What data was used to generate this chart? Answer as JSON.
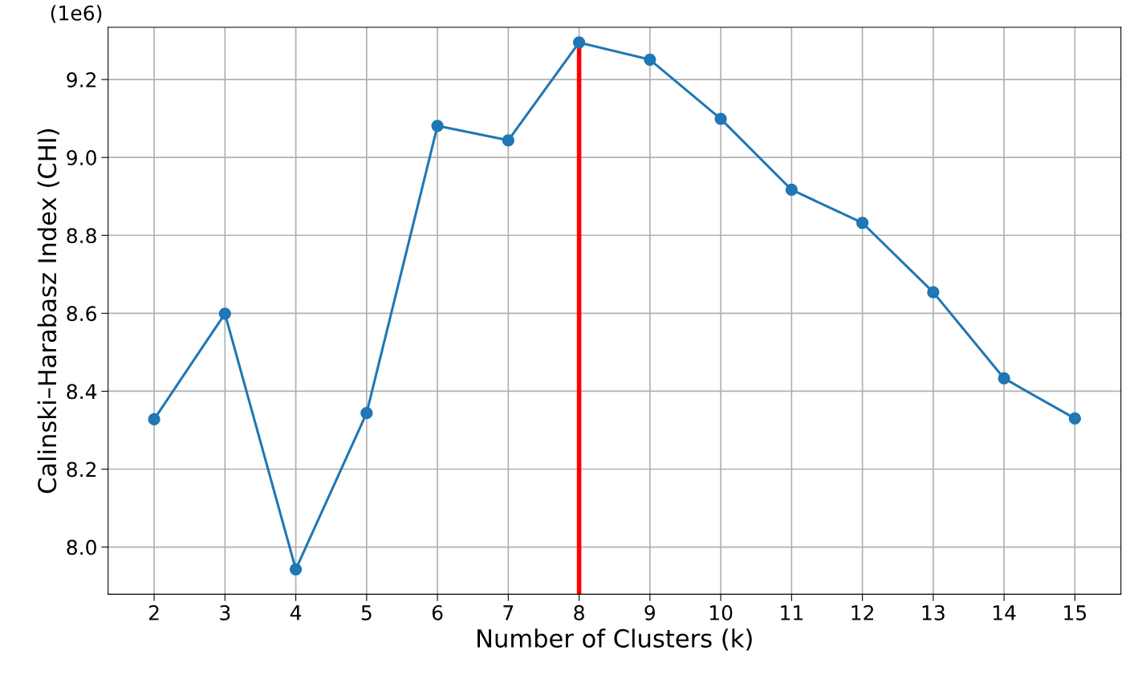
{
  "chart_data": {
    "type": "line",
    "xlabel": "Number of Clusters (k)",
    "ylabel": "Calinski–Harabasz Index (CHI)",
    "x": [
      2,
      3,
      4,
      5,
      6,
      7,
      8,
      9,
      10,
      11,
      12,
      13,
      14,
      15
    ],
    "series": [
      {
        "color": "#1f77b4",
        "values": [
          8.328,
          8.599,
          7.943,
          8.344,
          9.081,
          9.044,
          9.295,
          9.251,
          9.099,
          8.917,
          8.832,
          8.654,
          8.433,
          8.33
        ]
      }
    ],
    "xlim": [
      1.35,
      15.65
    ],
    "xticks": [
      2,
      3,
      4,
      5,
      6,
      7,
      8,
      9,
      10,
      11,
      12,
      13,
      14,
      15
    ],
    "ylim": [
      7.879,
      9.334
    ],
    "yticks": [
      {
        "value": 8.0,
        "label": "8.0"
      },
      8.2,
      8.4,
      8.6,
      8.8,
      {
        "value": 9.0,
        "label": "9.0"
      },
      9.2
    ],
    "ref_lines": [
      {
        "axis": "x",
        "value": 8,
        "color": "#ff0000",
        "line_style": "solid"
      }
    ],
    "annotations": [
      "(1e6)"
    ],
    "grid": true,
    "marker": "circle",
    "line_style": "solid"
  }
}
